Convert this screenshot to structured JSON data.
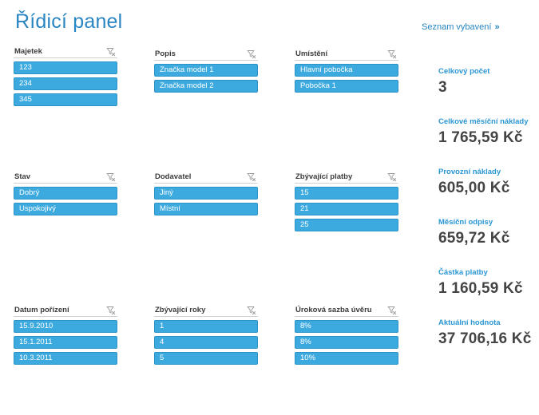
{
  "title": "Řídicí panel",
  "list_link": {
    "label": "Seznam vybavení",
    "chevron": "»"
  },
  "slicers": [
    {
      "key": "majetek",
      "title": "Majetek",
      "items": [
        "123",
        "234",
        "345"
      ]
    },
    {
      "key": "popis",
      "title": "Popis",
      "items": [
        "Značka model 1",
        "Značka model 2"
      ]
    },
    {
      "key": "umisteni",
      "title": "Umístění",
      "items": [
        "Hlavní pobočka",
        "Pobočka 1"
      ]
    },
    {
      "key": "stav",
      "title": "Stav",
      "items": [
        "Dobrý",
        "Uspokojivý"
      ]
    },
    {
      "key": "dodavatel",
      "title": "Dodavatel",
      "items": [
        "Jiný",
        "Místní"
      ]
    },
    {
      "key": "zbyvajici-platby",
      "title": "Zbývající platby",
      "items": [
        "15",
        "21",
        "25"
      ]
    },
    {
      "key": "datum-porizeni",
      "title": "Datum pořízení",
      "items": [
        "15.9.2010",
        "15.1.2011",
        "10.3.2011"
      ]
    },
    {
      "key": "zbyvajici-roky",
      "title": "Zbývající roky",
      "items": [
        "1",
        "4",
        "5"
      ]
    },
    {
      "key": "urokova-sazba",
      "title": "Úroková sazba úvěru",
      "items": [
        "8%",
        "8%",
        "10%"
      ]
    }
  ],
  "kpis": [
    {
      "label": "Celkový počet",
      "value": "3"
    },
    {
      "label": "Celkové měsíční náklady",
      "value": "1 765,59 Kč"
    },
    {
      "label": "Provozní náklady",
      "value": "605,00 Kč"
    },
    {
      "label": "Měsíční odpisy",
      "value": "659,72 Kč"
    },
    {
      "label": "Částka platby",
      "value": "1 160,59 Kč"
    },
    {
      "label": "Aktuální hodnota",
      "value": "37 706,16 Kč"
    }
  ],
  "colors": {
    "accent": "#2a86c2",
    "slicer_item": "#3daadf",
    "kpi_value": "#444444"
  },
  "icons": {
    "slicer_clear": "filter-clear-icon",
    "link": "double-chevron-right-icon"
  }
}
